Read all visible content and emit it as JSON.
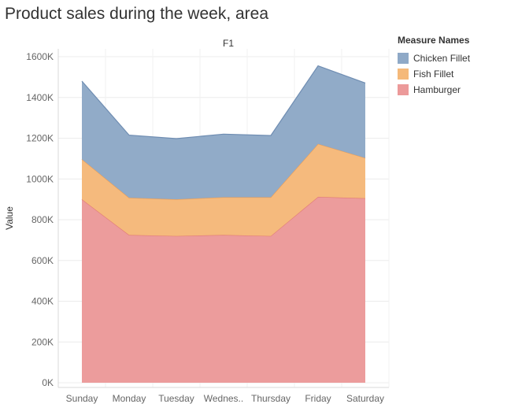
{
  "title": "Product sales during the week, area",
  "facet_label": "F1",
  "legend": {
    "title": "Measure Names",
    "items": [
      {
        "label": "Chicken Fillet",
        "color": "#8fa9c7"
      },
      {
        "label": "Fish Fillet",
        "color": "#f5b97a"
      },
      {
        "label": "Hamburger",
        "color": "#ec9a9a"
      }
    ]
  },
  "chart_data": {
    "type": "area",
    "stacked": true,
    "title": "Product sales during the week, area",
    "xlabel": "",
    "ylabel": "Value",
    "categories": [
      "Sunday",
      "Monday",
      "Tuesday",
      "Wednes..",
      "Thursday",
      "Friday",
      "Saturday"
    ],
    "ylim": [
      0,
      1600000
    ],
    "yticks": [
      0,
      200000,
      400000,
      600000,
      800000,
      1000000,
      1200000,
      1400000,
      1600000
    ],
    "ytick_labels": [
      "0K",
      "200K",
      "400K",
      "600K",
      "800K",
      "1000K",
      "1200K",
      "1400K",
      "1600K"
    ],
    "grid": true,
    "series": [
      {
        "name": "Hamburger",
        "color": "#ec9a9a",
        "line_color": "#e07a7a",
        "values": [
          900000,
          725000,
          720000,
          725000,
          720000,
          912000,
          905000
        ]
      },
      {
        "name": "Fish Fillet",
        "color": "#f5b97a",
        "line_color": "#ee9f55",
        "values": [
          197000,
          183000,
          180000,
          185000,
          190000,
          260000,
          198000
        ]
      },
      {
        "name": "Chicken Fillet",
        "color": "#8fa9c7",
        "line_color": "#6f8db2",
        "values": [
          383000,
          307000,
          298000,
          310000,
          303000,
          383000,
          368000
        ]
      }
    ]
  }
}
